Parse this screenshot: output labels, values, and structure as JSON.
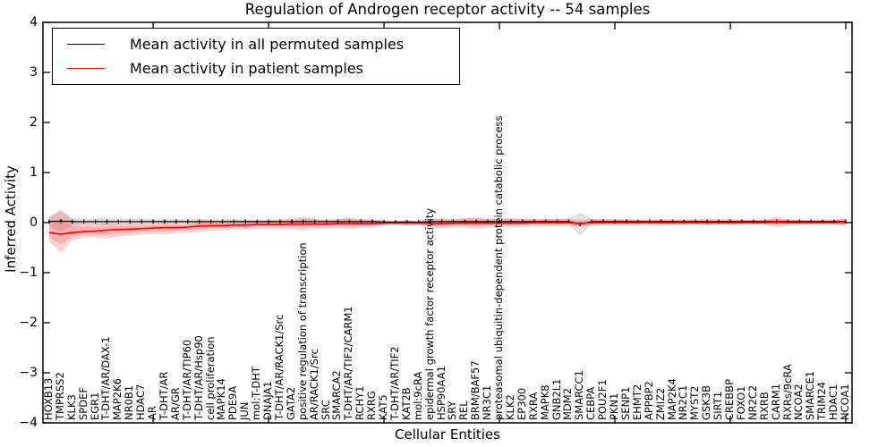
{
  "chart_data": {
    "type": "line",
    "title": "Regulation of Androgen receptor activity -- 54 samples",
    "xlabel": "Cellular Entities",
    "ylabel": "Inferred Activity",
    "ylim": [
      -4,
      4
    ],
    "yticks": [
      4,
      3,
      2,
      1,
      0,
      -1,
      -2,
      -3,
      -4
    ],
    "x_major_tick_every": 10,
    "grid": false,
    "legend_position": "upper left",
    "frame_color": "#000000",
    "background_color": "#ffffff",
    "categories": [
      "HOXB13",
      "TMPRSS2",
      "KLK3",
      "SPDEF",
      "EGR1",
      "T-DHT/AR/DAX-1",
      "MAP2K6",
      "NR0B1",
      "HDAC7",
      "AR",
      "T-DHT/AR",
      "AR/GR",
      "T-DHT/AR/TIP60",
      "T-DHT/AR/Hsp90",
      "cell proliferation",
      "MAPK14",
      "PDE9A",
      "JUN",
      "mol:T-DHT",
      "DNAJA1",
      "T-DHT/AR/RACK1/Src",
      "GATA2",
      "positive regulation of transcription",
      "AR/RACK1/Src",
      "SRC",
      "SMARCA2",
      "T-DHT/AR/TIF2/CARM1",
      "RCHY1",
      "RXRG",
      "KAT5",
      "T-DHT/AR/TIF2",
      "KAT2B",
      "mol:9cRA",
      "epidermal growth factor receptor activity",
      "HSP90AA1",
      "SRY",
      "REL",
      "BRM/BAF57",
      "NR3C1",
      "proteasomal ubiquitin-dependent protein catabolic process",
      "KLK2",
      "EP300",
      "RXRA",
      "MAPK8",
      "GNB2L1",
      "MDM2",
      "SMARCC1",
      "CEBPA",
      "POU2F1",
      "PKN1",
      "SENP1",
      "EHMT2",
      "APPBP2",
      "ZMIZ2",
      "MAP2K4",
      "NR2C1",
      "MYST2",
      "GSK3B",
      "SIRT1",
      "CREBBP",
      "FOXO1",
      "NR2C2",
      "RXRB",
      "CARM1",
      "RXRs/9cRA",
      "NCOA2",
      "SMARCE1",
      "TRIM24",
      "HDAC1",
      "NCOA1"
    ],
    "series": [
      {
        "name": "Mean activity in all permuted samples",
        "color": "#000000",
        "line_width": 1.3,
        "marker": "vertical-dash",
        "band_color": "#999999",
        "band_alpha": 0.3,
        "values": [
          0.02,
          0.03,
          0.02,
          0.02,
          0.02,
          0.02,
          0.02,
          0.02,
          0.02,
          0.02,
          0.02,
          0.02,
          0.02,
          0.02,
          0.02,
          0.02,
          0.02,
          0.02,
          0.02,
          0.02,
          0.02,
          0.02,
          0.02,
          0.02,
          0.02,
          0.02,
          0.02,
          0.02,
          0.02,
          0.01,
          0.01,
          0.01,
          0.01,
          0.02,
          0.02,
          0.02,
          0.02,
          0.02,
          0.02,
          0.02,
          0.02,
          0.02,
          0.02,
          0.02,
          0.02,
          0.02,
          -0.03,
          0.02,
          0.02,
          0.02,
          0.02,
          0.02,
          0.02,
          0.02,
          0.02,
          0.02,
          0.02,
          0.02,
          0.02,
          0.02,
          0.02,
          0.02,
          0.02,
          0.02,
          0.02,
          0.02,
          0.02,
          0.02,
          0.02,
          0.02
        ],
        "band_hi": [
          0.12,
          0.22,
          0.1,
          0.08,
          0.08,
          0.1,
          0.08,
          0.08,
          0.08,
          0.07,
          0.08,
          0.07,
          0.07,
          0.08,
          0.07,
          0.07,
          0.06,
          0.07,
          0.06,
          0.06,
          0.07,
          0.07,
          0.09,
          0.07,
          0.06,
          0.07,
          0.08,
          0.07,
          0.06,
          0.05,
          0.04,
          0.05,
          0.04,
          0.07,
          0.08,
          0.07,
          0.08,
          0.09,
          0.07,
          0.07,
          0.08,
          0.07,
          0.07,
          0.07,
          0.07,
          0.08,
          0.2,
          0.08,
          0.07,
          0.07,
          0.07,
          0.06,
          0.06,
          0.07,
          0.06,
          0.06,
          0.06,
          0.09,
          0.06,
          0.07,
          0.06,
          0.06,
          0.06,
          0.08,
          0.07,
          0.06,
          0.06,
          0.06,
          0.06,
          0.08
        ],
        "band_lo": [
          -0.08,
          -0.18,
          -0.06,
          -0.04,
          -0.04,
          -0.06,
          -0.04,
          -0.04,
          -0.04,
          -0.03,
          -0.04,
          -0.03,
          -0.03,
          -0.04,
          -0.03,
          -0.03,
          -0.02,
          -0.03,
          -0.02,
          -0.02,
          -0.03,
          -0.03,
          -0.05,
          -0.03,
          -0.02,
          -0.03,
          -0.04,
          -0.03,
          -0.02,
          -0.01,
          0.0,
          -0.01,
          0.0,
          -0.03,
          -0.04,
          -0.03,
          -0.04,
          -0.05,
          -0.03,
          -0.03,
          -0.04,
          -0.03,
          -0.03,
          -0.03,
          -0.03,
          -0.04,
          -0.26,
          -0.04,
          -0.03,
          -0.03,
          -0.03,
          -0.02,
          -0.02,
          -0.03,
          -0.02,
          -0.02,
          -0.02,
          -0.05,
          -0.02,
          -0.03,
          -0.02,
          -0.02,
          -0.02,
          -0.04,
          -0.03,
          -0.02,
          -0.02,
          -0.02,
          -0.02,
          -0.04
        ]
      },
      {
        "name": "Mean activity in patient samples",
        "color": "#ff0000",
        "line_width": 1.6,
        "marker": "none",
        "band_color": "#ff2222",
        "band_alpha": 0.2,
        "inner_band_scale": 0.55,
        "values": [
          -0.2,
          -0.23,
          -0.2,
          -0.18,
          -0.17,
          -0.15,
          -0.14,
          -0.13,
          -0.12,
          -0.11,
          -0.1,
          -0.1,
          -0.09,
          -0.07,
          -0.06,
          -0.06,
          -0.05,
          -0.05,
          -0.04,
          -0.04,
          -0.04,
          -0.03,
          -0.03,
          -0.03,
          -0.03,
          -0.02,
          -0.02,
          -0.02,
          -0.02,
          -0.01,
          -0.01,
          -0.01,
          -0.01,
          -0.02,
          -0.02,
          -0.01,
          -0.01,
          -0.01,
          -0.01,
          -0.01,
          -0.01,
          -0.01,
          0.0,
          0.0,
          0.0,
          0.0,
          -0.02,
          0.0,
          0.0,
          0.0,
          0.0,
          0.0,
          0.0,
          0.0,
          0.0,
          0.0,
          0.0,
          0.0,
          0.0,
          0.0,
          0.0,
          0.0,
          0.0,
          0.01,
          0.0,
          0.0,
          0.0,
          0.0,
          0.0,
          0.01
        ],
        "band_hi": [
          0.1,
          0.27,
          0.05,
          0.0,
          -0.02,
          0.0,
          -0.02,
          -0.01,
          -0.02,
          -0.01,
          0.0,
          -0.01,
          -0.01,
          0.04,
          0.03,
          0.02,
          0.03,
          0.04,
          0.04,
          0.04,
          0.05,
          0.07,
          0.11,
          0.07,
          0.05,
          0.07,
          0.1,
          0.07,
          0.06,
          0.04,
          0.02,
          0.05,
          0.02,
          0.07,
          0.08,
          0.07,
          0.09,
          0.11,
          0.08,
          0.08,
          0.09,
          0.08,
          0.08,
          0.08,
          0.08,
          0.08,
          0.05,
          0.07,
          0.07,
          0.06,
          0.07,
          0.06,
          0.06,
          0.07,
          0.06,
          0.06,
          0.06,
          0.06,
          0.06,
          0.06,
          0.06,
          0.05,
          0.06,
          0.11,
          0.06,
          0.05,
          0.06,
          0.05,
          0.06,
          0.09
        ],
        "band_lo": [
          -0.38,
          -0.6,
          -0.35,
          -0.3,
          -0.3,
          -0.32,
          -0.28,
          -0.26,
          -0.24,
          -0.23,
          -0.24,
          -0.21,
          -0.2,
          -0.19,
          -0.16,
          -0.16,
          -0.14,
          -0.15,
          -0.13,
          -0.13,
          -0.14,
          -0.13,
          -0.15,
          -0.13,
          -0.12,
          -0.11,
          -0.13,
          -0.11,
          -0.1,
          -0.06,
          -0.04,
          -0.07,
          -0.04,
          -0.11,
          -0.12,
          -0.1,
          -0.1,
          -0.12,
          -0.1,
          -0.09,
          -0.1,
          -0.09,
          -0.08,
          -0.08,
          -0.08,
          -0.07,
          -0.09,
          -0.07,
          -0.06,
          -0.06,
          -0.06,
          -0.06,
          -0.06,
          -0.06,
          -0.06,
          -0.06,
          -0.05,
          -0.06,
          -0.05,
          -0.06,
          -0.05,
          -0.05,
          -0.05,
          -0.09,
          -0.06,
          -0.05,
          -0.05,
          -0.05,
          -0.05,
          -0.07
        ]
      }
    ]
  }
}
